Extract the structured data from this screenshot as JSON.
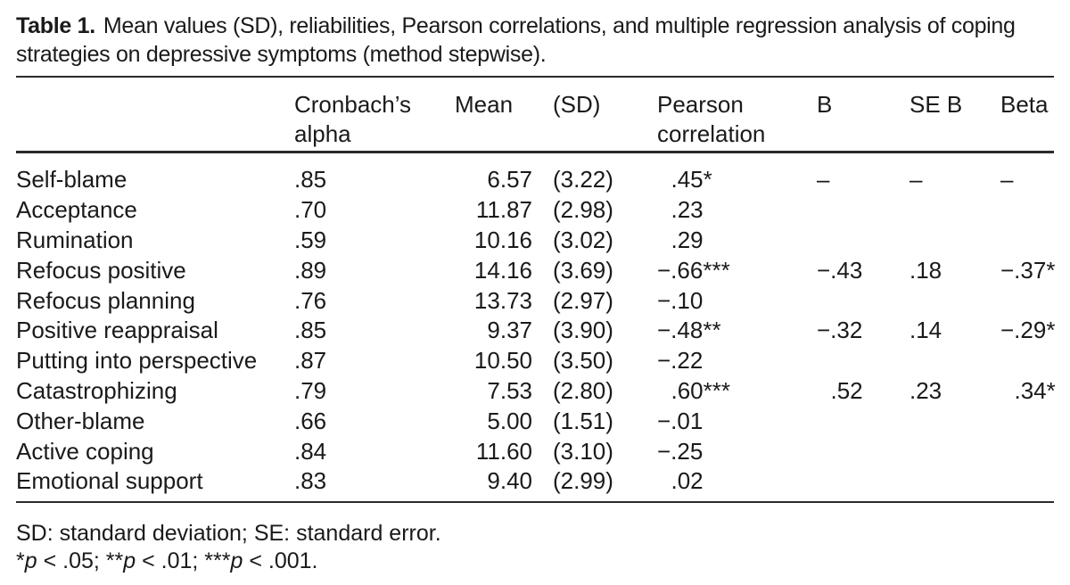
{
  "caption": {
    "label": "Table 1.",
    "text": "Mean values (SD), reliabilities, Pearson correlations, and multiple regression analysis of coping strategies on depressive symptoms (method stepwise)."
  },
  "table": {
    "columns": {
      "strategy": "",
      "alpha": "Cronbach’s alpha",
      "mean": "Mean",
      "sd": "(SD)",
      "pearson": "Pearson correlation",
      "b": "B",
      "se_b": "SE B",
      "beta": "Beta"
    },
    "rows": [
      {
        "strategy": "Self-blame",
        "alpha": ".85",
        "mean": "6.57",
        "sd": "(3.22)",
        "pearson": ".45*",
        "b": "–",
        "se_b": "–",
        "beta": "–"
      },
      {
        "strategy": "Acceptance",
        "alpha": ".70",
        "mean": "11.87",
        "sd": "(2.98)",
        "pearson": ".23",
        "b": "",
        "se_b": "",
        "beta": ""
      },
      {
        "strategy": "Rumination",
        "alpha": ".59",
        "mean": "10.16",
        "sd": "(3.02)",
        "pearson": ".29",
        "b": "",
        "se_b": "",
        "beta": ""
      },
      {
        "strategy": "Refocus positive",
        "alpha": ".89",
        "mean": "14.16",
        "sd": "(3.69)",
        "pearson": "−.66***",
        "b": "−.43",
        "se_b": ".18",
        "beta": "−.37*"
      },
      {
        "strategy": "Refocus planning",
        "alpha": ".76",
        "mean": "13.73",
        "sd": "(2.97)",
        "pearson": "−.10",
        "b": "",
        "se_b": "",
        "beta": ""
      },
      {
        "strategy": "Positive reappraisal",
        "alpha": ".85",
        "mean": "9.37",
        "sd": "(3.90)",
        "pearson": "−.48**",
        "b": "−.32",
        "se_b": ".14",
        "beta": "−.29*"
      },
      {
        "strategy": "Putting into perspective",
        "alpha": ".87",
        "mean": "10.50",
        "sd": "(3.50)",
        "pearson": "−.22",
        "b": "",
        "se_b": "",
        "beta": ""
      },
      {
        "strategy": "Catastrophizing",
        "alpha": ".79",
        "mean": "7.53",
        "sd": "(2.80)",
        "pearson": ".60***",
        "b": ".52",
        "se_b": ".23",
        "beta": ".34*"
      },
      {
        "strategy": "Other-blame",
        "alpha": ".66",
        "mean": "5.00",
        "sd": "(1.51)",
        "pearson": "−.01",
        "b": "",
        "se_b": "",
        "beta": ""
      },
      {
        "strategy": "Active coping",
        "alpha": ".84",
        "mean": "11.60",
        "sd": "(3.10)",
        "pearson": "−.25",
        "b": "",
        "se_b": "",
        "beta": ""
      },
      {
        "strategy": "Emotional support",
        "alpha": ".83",
        "mean": "9.40",
        "sd": "(2.99)",
        "pearson": ".02",
        "b": "",
        "se_b": "",
        "beta": ""
      }
    ]
  },
  "footnotes": {
    "abbreviations": "SD: standard deviation; SE: standard error.",
    "significance_segments": [
      {
        "text": "*",
        "italic": false
      },
      {
        "text": "p",
        "italic": true
      },
      {
        "text": " < .05; **",
        "italic": false
      },
      {
        "text": "p",
        "italic": true
      },
      {
        "text": " < .01; ***",
        "italic": false
      },
      {
        "text": "p",
        "italic": true
      },
      {
        "text": " < .001.",
        "italic": false
      }
    ]
  },
  "colors": {
    "background": "#ffffff",
    "text": "#1a1a1a",
    "rule": "#2a2a2a"
  }
}
